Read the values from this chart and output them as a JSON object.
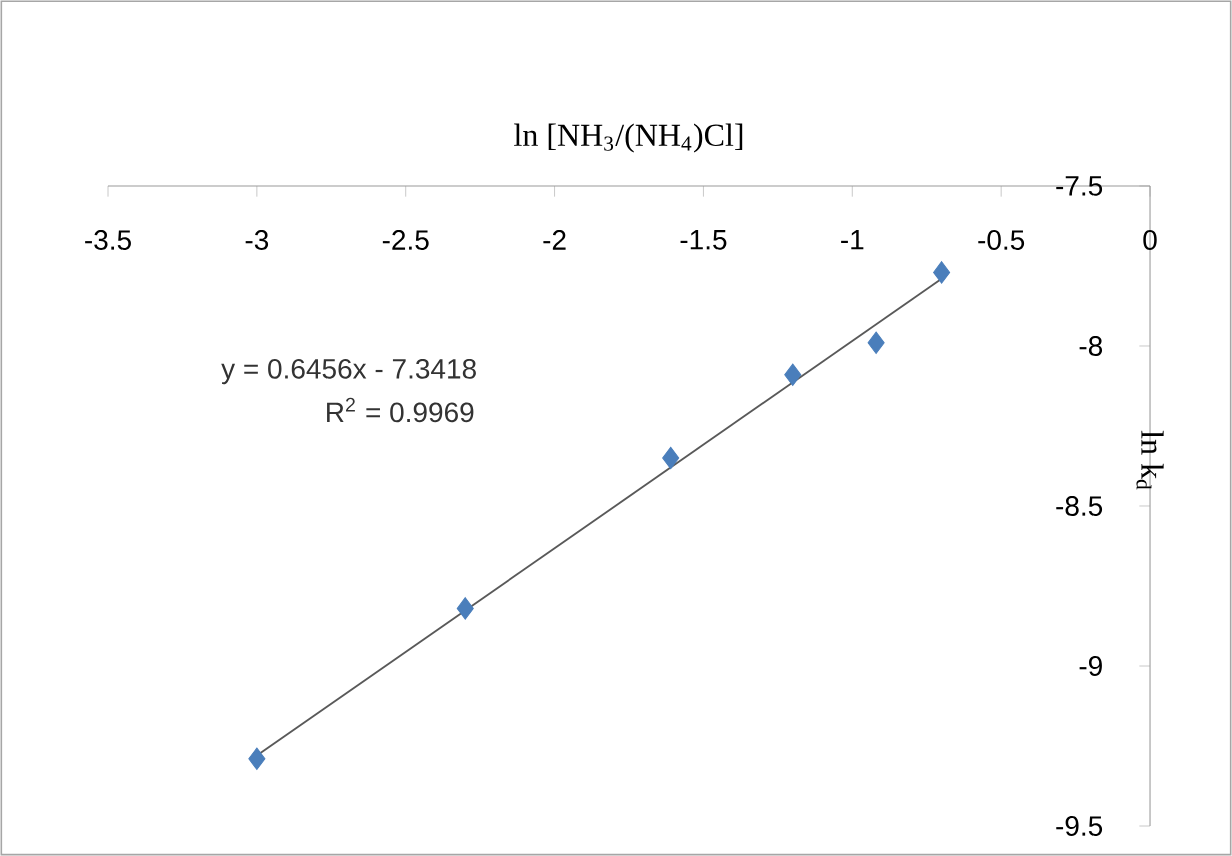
{
  "chart_data": {
    "type": "scatter",
    "xlabel": "ln [NH$_{3}$/(NH$_{4}$)Cl]",
    "ylabel": "ln k$_{d}$",
    "xlim": [
      -3.5,
      0
    ],
    "xticks": [
      -3.5,
      -3,
      -2.5,
      -2,
      -1.5,
      -1,
      -0.5,
      0
    ],
    "ylim": [
      -9.5,
      -7.5
    ],
    "yticks": [
      -9.5,
      -9,
      -8.5,
      -8,
      -7.5
    ],
    "series": [
      {
        "marker": "diamond",
        "color": "#4a7ebb",
        "x": [
          -3.0,
          -2.3,
          -1.61,
          -1.2,
          -0.92,
          -0.7
        ],
        "values": [
          -9.29,
          -8.82,
          -8.35,
          -8.09,
          -7.99,
          -7.77
        ]
      },
      {
        "type": "line",
        "marker": "none",
        "color": "#595959",
        "x": [
          -3.0,
          -0.7
        ],
        "values": [
          -9.28,
          -7.79
        ]
      }
    ],
    "annotations": [
      "y = 0.6456x - 7.3418",
      "R$^{2}$ = 0.9969"
    ]
  }
}
